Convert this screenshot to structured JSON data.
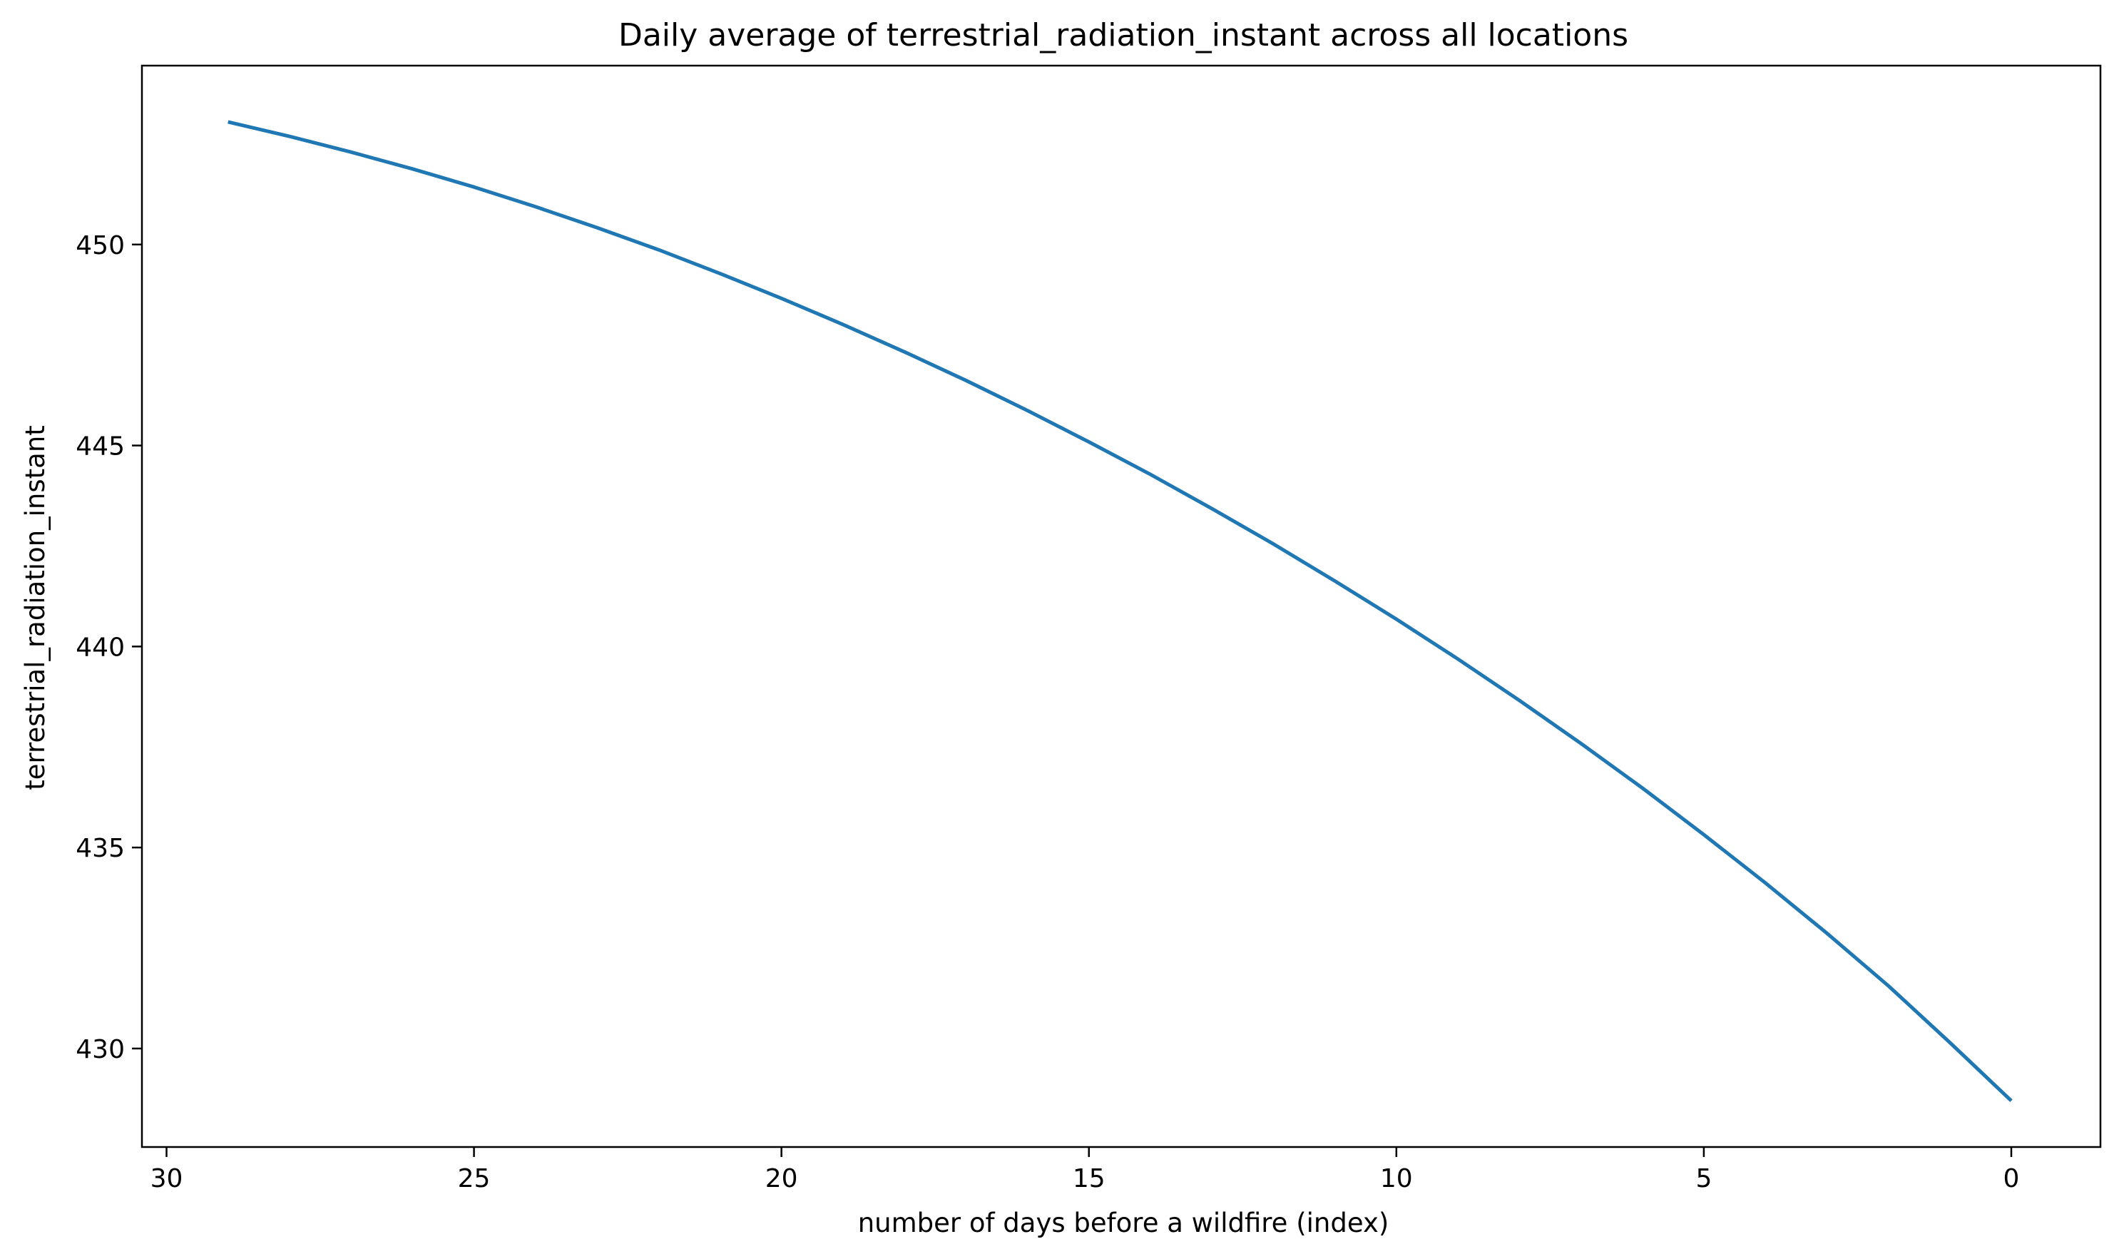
{
  "chart_data": {
    "type": "line",
    "title": "Daily average of terrestrial_radiation_instant across all locations",
    "xlabel": "number of days before a wildfire (index)",
    "ylabel": "terrestrial_radiation_instant",
    "x_inverted": true,
    "xlim": [
      30.4,
      -1.45
    ],
    "ylim": [
      427.55,
      454.45
    ],
    "xticks": [
      30,
      25,
      20,
      15,
      10,
      5,
      0
    ],
    "yticks": [
      430,
      435,
      440,
      445,
      450
    ],
    "grid": false,
    "line_color": "#1f77b4",
    "series": [
      {
        "x": [
          29,
          28,
          27,
          26,
          25,
          24,
          23,
          22,
          21,
          20,
          19,
          18,
          17,
          16,
          15,
          14,
          13,
          12,
          11,
          10,
          9,
          8,
          7,
          6,
          5,
          4,
          3,
          2,
          1,
          0
        ],
        "values": [
          453.05,
          452.69,
          452.3,
          451.88,
          451.43,
          450.94,
          450.42,
          449.87,
          449.28,
          448.66,
          448.01,
          447.33,
          446.62,
          445.87,
          445.09,
          444.28,
          443.43,
          442.55,
          441.63,
          440.68,
          439.69,
          438.66,
          437.59,
          436.48,
          435.32,
          434.12,
          432.87,
          431.56,
          430.15,
          428.7
        ]
      }
    ]
  }
}
